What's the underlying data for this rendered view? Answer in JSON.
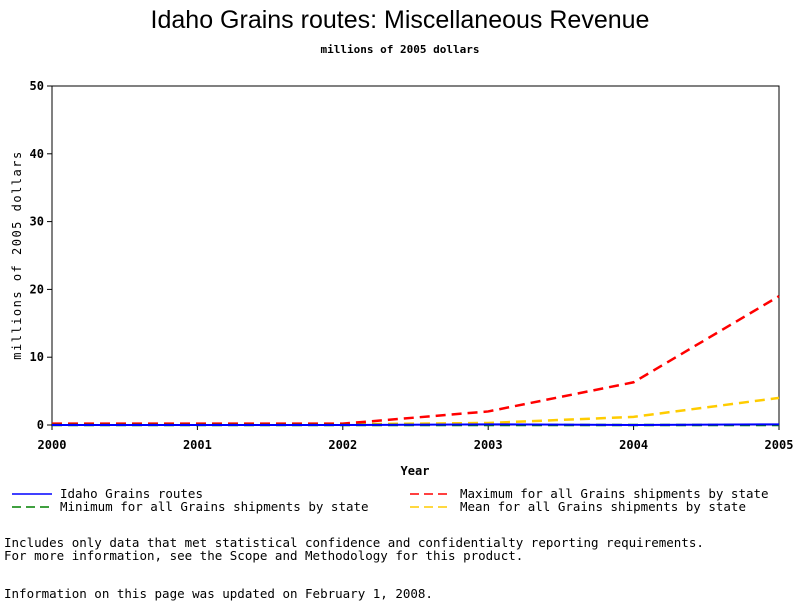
{
  "chart_data": {
    "type": "line",
    "title": "Idaho Grains routes: Miscellaneous Revenue",
    "subtitle": "millions of 2005 dollars",
    "xlabel": "Year",
    "ylabel": "millions of 2005 dollars",
    "xlim": [
      2000,
      2005
    ],
    "ylim": [
      0,
      50
    ],
    "xticks": [
      "2000",
      "2001",
      "2002",
      "2003",
      "2004",
      "2005"
    ],
    "yticks": [
      "0",
      "10",
      "20",
      "30",
      "40",
      "50"
    ],
    "grid": false,
    "legend_position": "bottom",
    "series": [
      {
        "name": "Idaho Grains routes",
        "color": "#0000ff",
        "dash": "solid",
        "x": [
          2000,
          2001,
          2002,
          2003,
          2004,
          2005
        ],
        "values": [
          0,
          0,
          0,
          0.1,
          0,
          0.1
        ]
      },
      {
        "name": "Minimum for all Grains shipments by state",
        "color": "#008000",
        "dash": "dashed",
        "x": [
          2000,
          2001,
          2002,
          2003,
          2004,
          2005
        ],
        "values": [
          0,
          0,
          0,
          0,
          0,
          0
        ]
      },
      {
        "name": "Maximum for all Grains shipments by state",
        "color": "#ff0000",
        "dash": "dashed",
        "x": [
          2000,
          2001,
          2002,
          2003,
          2004,
          2005
        ],
        "values": [
          0.2,
          0.2,
          0.2,
          2,
          6.3,
          19
        ]
      },
      {
        "name": "Mean for all Grains shipments by state",
        "color": "#ffcc00",
        "dash": "dashed",
        "x": [
          2000,
          2001,
          2002,
          2003,
          2004,
          2005
        ],
        "values": [
          0.1,
          0.1,
          0.1,
          0.3,
          1.2,
          4
        ]
      }
    ]
  },
  "notes": {
    "line1": "Includes only data that met statistical confidence and confidentialty reporting requirements.",
    "line2": "For more information, see the Scope and Methodology for this product.",
    "updated": "Information on this page was updated on February 1, 2008."
  }
}
